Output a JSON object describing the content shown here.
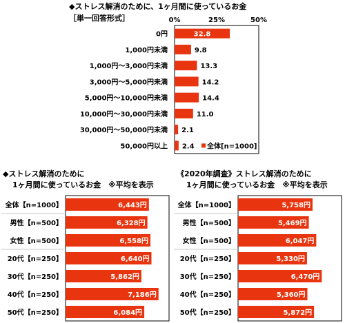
{
  "colors": {
    "bar": "#e8350f",
    "frame": "#000000",
    "divider": "#c8c8c8",
    "label_on_bar": "#ffffff"
  },
  "top": {
    "title": "◆ストレス解消のために、1ヶ月間に使っているお金",
    "subtitle": "［単一回答形式］",
    "axis_ticks": [
      "0%",
      "25%",
      "50%"
    ]
  },
  "bottom_left": {
    "title_line1": "◆ストレス解消のために",
    "title_line2": "1ヶ月間に使っているお金　※平均を表示"
  },
  "bottom_right": {
    "title_line1": "《2020年調査》ストレス解消のために",
    "title_line2": "1ヶ月間に使っているお金　※平均を表示"
  },
  "chart_data": [
    {
      "type": "bar",
      "orientation": "horizontal",
      "categories": [
        "0円",
        "1,000円未満",
        "1,000円～3,000円未満",
        "3,000円～5,000円未満",
        "5,000円～10,000円未満",
        "10,000円～30,000円未満",
        "30,000円～50,000円未満",
        "50,000円以上"
      ],
      "series": [
        {
          "name": "全体[n=1000]",
          "values": [
            32.8,
            9.8,
            13.3,
            14.2,
            14.4,
            11.0,
            2.1,
            2.4
          ]
        }
      ],
      "value_labels": [
        "32.8",
        "9.8",
        "13.3",
        "14.2",
        "14.4",
        "11.0",
        "2.1",
        "2.4"
      ],
      "xlim": [
        0,
        50
      ],
      "legend": "bottom-right"
    },
    {
      "type": "bar",
      "orientation": "horizontal",
      "categories": [
        "全体【n=1000】",
        "男性【n=500】",
        "女性【n=500】",
        "20代【n=250】",
        "30代【n=250】",
        "40代【n=250】",
        "50代【n=250】"
      ],
      "values": [
        6443,
        6328,
        6558,
        6640,
        5862,
        7186,
        6084
      ],
      "value_labels": [
        "6,443円",
        "6,328円",
        "6,558円",
        "6,640円",
        "5,862円",
        "7,186円",
        "6,084円"
      ]
    },
    {
      "type": "bar",
      "orientation": "horizontal",
      "categories": [
        "全体【n=1000】",
        "男性【n=500】",
        "女性【n=500】",
        "20代【n=250】",
        "30代【n=250】",
        "40代【n=250】",
        "50代【n=250】"
      ],
      "values": [
        5758,
        5469,
        6047,
        5330,
        6470,
        5360,
        5872
      ],
      "value_labels": [
        "5,758円",
        "5,469円",
        "6,047円",
        "5,330円",
        "6,470円",
        "5,360円",
        "5,872円"
      ]
    }
  ]
}
